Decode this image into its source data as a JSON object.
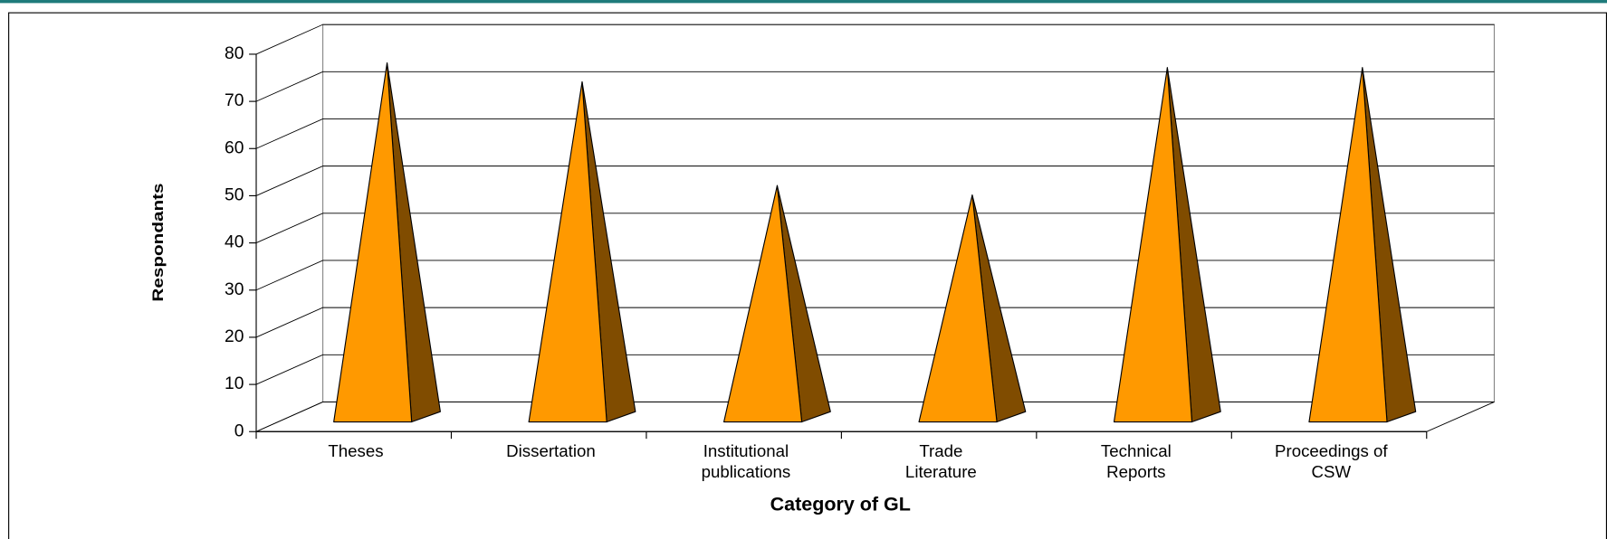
{
  "chart_data": {
    "type": "pyramid3d",
    "x_label": "Category of GL",
    "y_label": "Respondants",
    "categories": [
      "Theses",
      "Dissertation",
      "Institutional\npublications",
      "Trade\nLiterature",
      "Technical\nReports",
      "Proceedings of\nCSW"
    ],
    "values": [
      75,
      71,
      49,
      47,
      74,
      74
    ],
    "color": "#ff9900",
    "side_color": "#804c00",
    "ylim": [
      0,
      80
    ],
    "yticks": [
      0,
      10,
      20,
      30,
      40,
      50,
      60,
      70,
      80
    ],
    "grid": true
  }
}
